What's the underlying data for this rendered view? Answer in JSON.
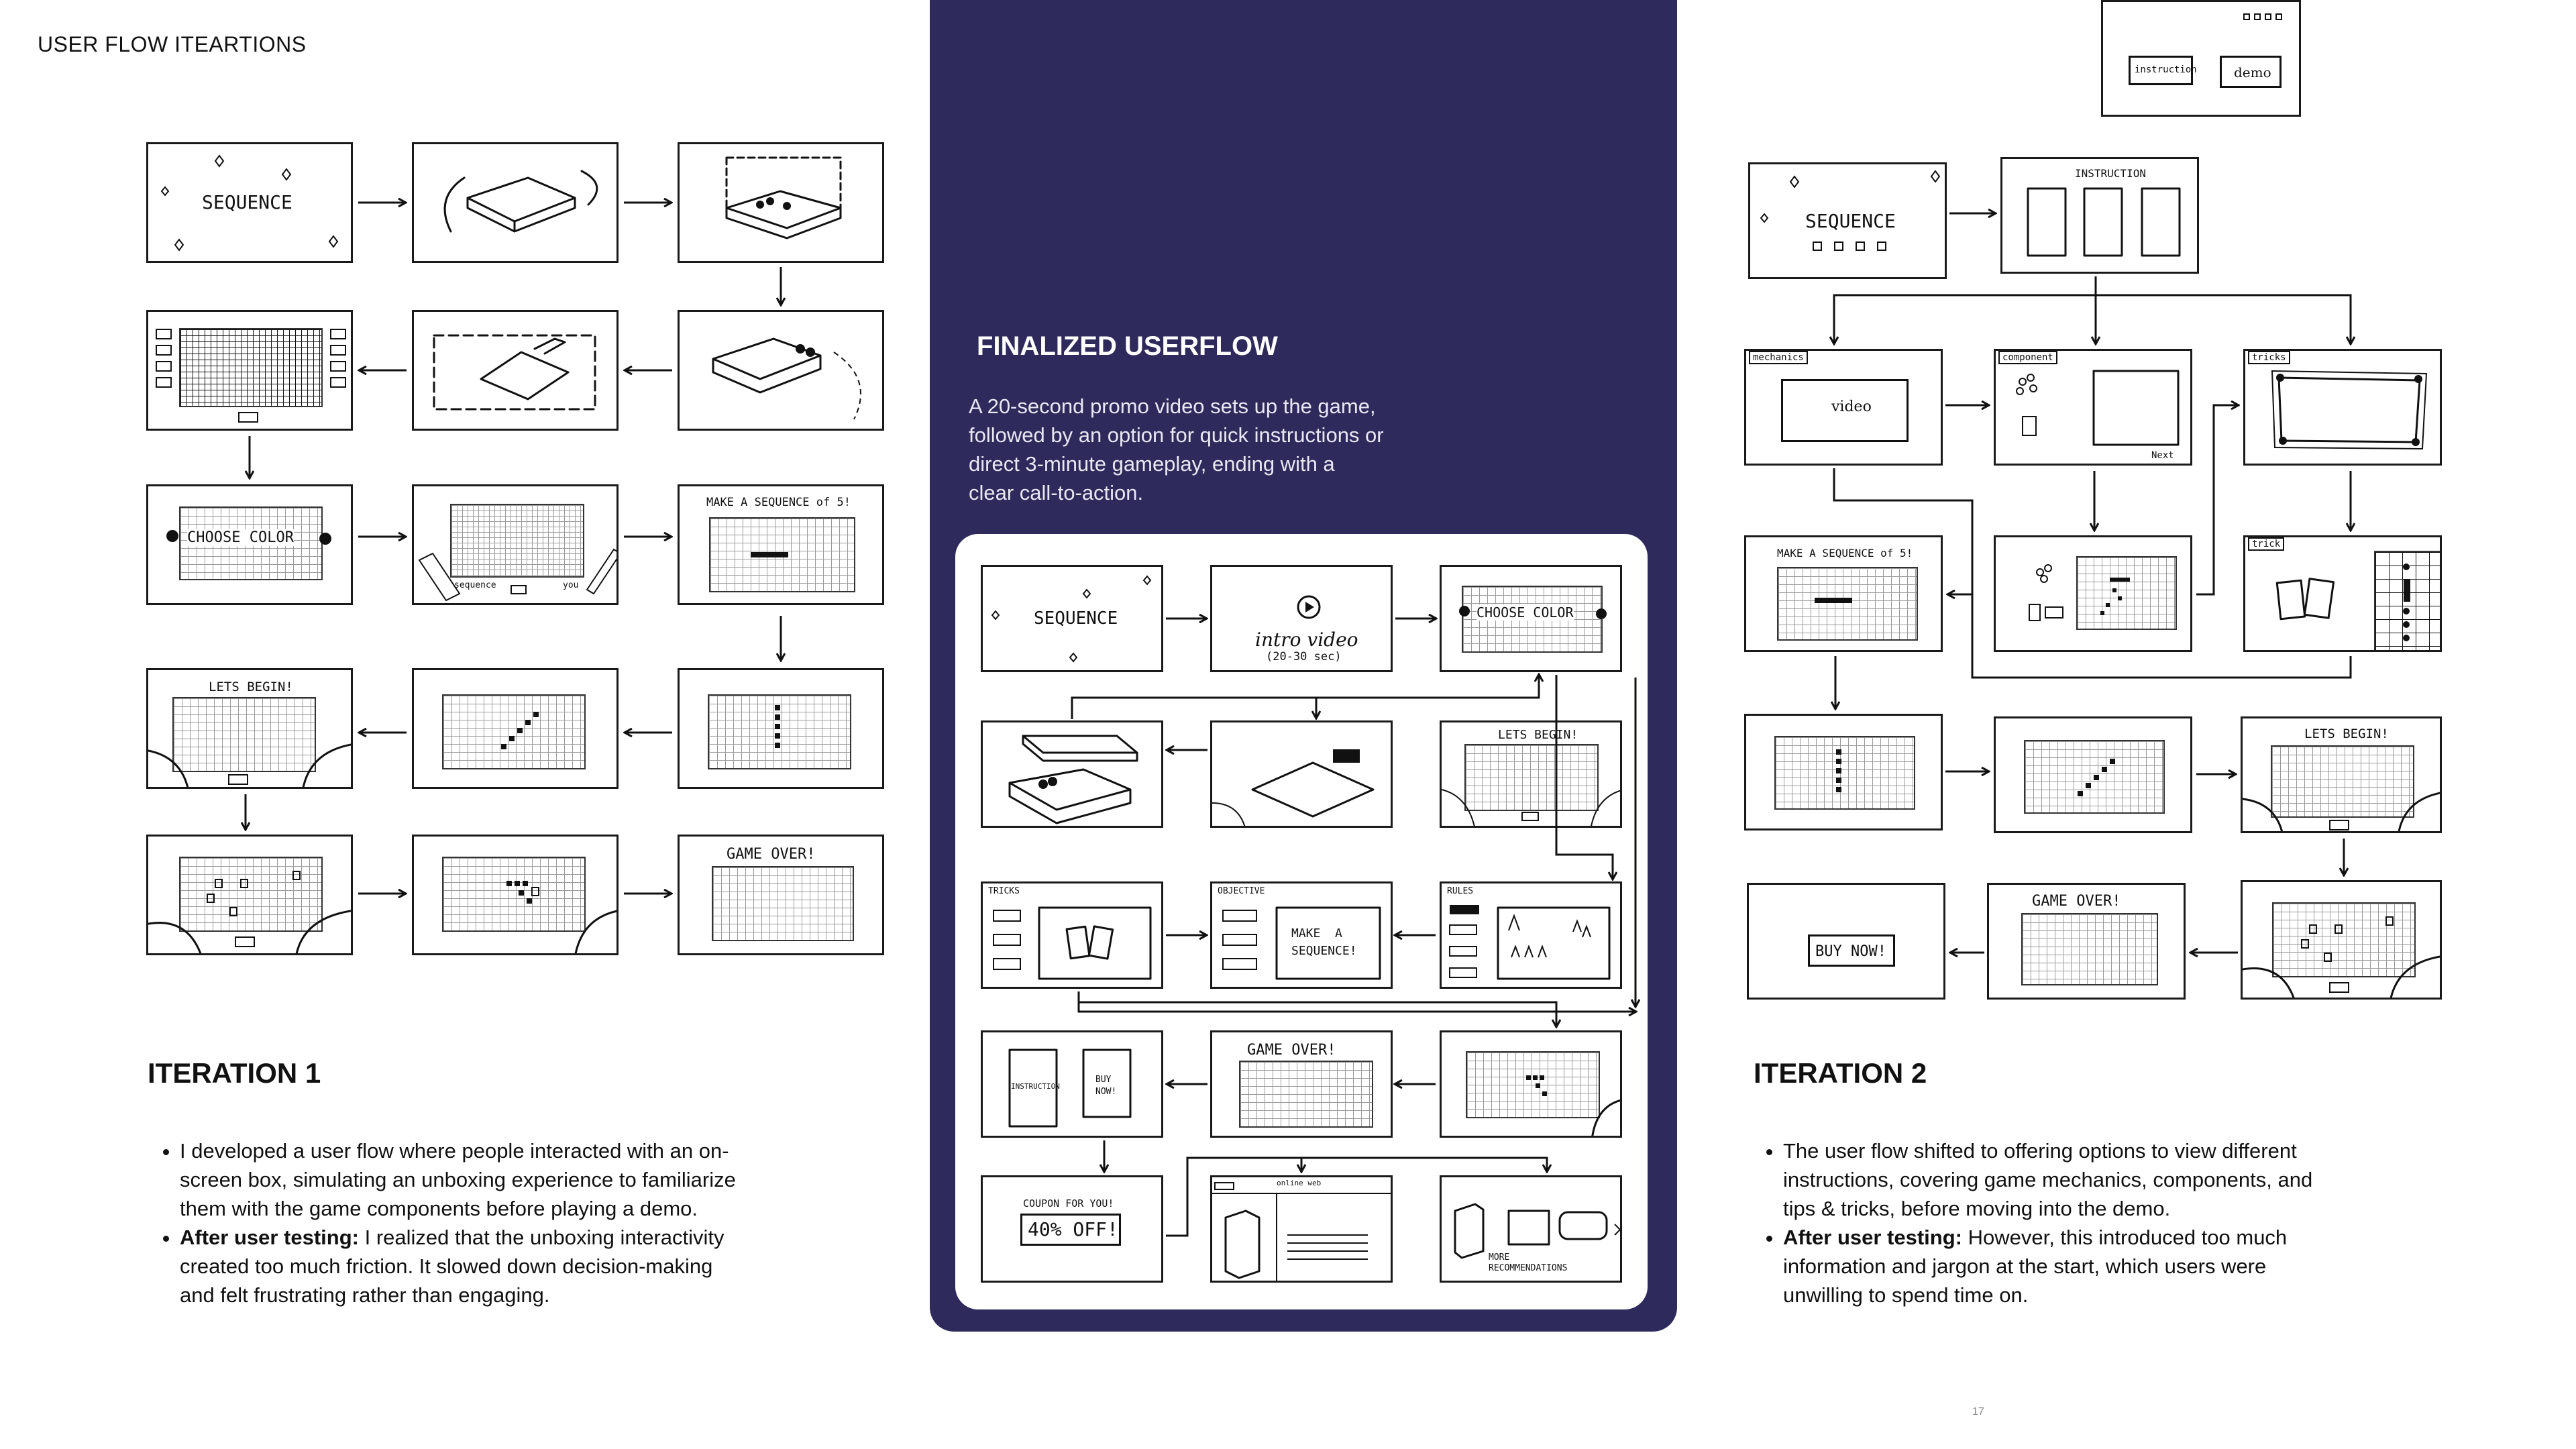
{
  "page": {
    "title": "USER FLOW ITEARTIONS",
    "page_number": "17"
  },
  "iteration1": {
    "heading": "ITERATION 1",
    "bullets": [
      {
        "bold": "",
        "text": "I developed a user flow where people interacted with an on-screen box, simulating an unboxing experience to familiarize them with the game components before playing a demo."
      },
      {
        "bold": "After user testing:",
        "text": " I realized that the unboxing interactivity created too much friction. It slowed down decision-making and felt frustrating rather than engaging."
      }
    ],
    "sketch_labels": {
      "sequence": "SEQUENCE",
      "choose_color": "CHOOSE  COLOR",
      "make_sequence": "MAKE  A  SEQUENCE of 5!",
      "lets_begin": "LETS  BEGIN!",
      "game_over": "GAME  OVER!",
      "sequence_small": "sequence",
      "you": "you"
    }
  },
  "finalized": {
    "heading": "FINALIZED USERFLOW",
    "description": " A 20-second promo video sets up the game, followed by an option for quick instructions or direct 3-minute gameplay, ending with a clear call-to-action.",
    "sketch_labels": {
      "sequence": "SEQUENCE",
      "intro_video": "intro video",
      "intro_duration": "(20-30 sec)",
      "choose_color": "CHOOSE  COLOR",
      "lets_begin": "LETS  BEGIN!",
      "tricks": "TRICKS",
      "objective": "OBJECTIVE",
      "rules": "RULES",
      "make_sequence": "MAKE  A\nSEQUENCE!",
      "game_over": "GAME  OVER!",
      "instruction": "INSTRUCTION",
      "buy_now": "BUY\nNOW!",
      "coupon_title": "COUPON  FOR  YOU!",
      "coupon_value": "40% OFF!",
      "online_web": "online web",
      "more_recs": "MORE\nRECOMMENDATIONS"
    }
  },
  "iteration2": {
    "heading": "ITERATION 2",
    "bullets": [
      {
        "bold": "",
        "text": "The user flow shifted to offering options to view different instructions, covering game mechanics, components, and tips & tricks,  before moving into the demo."
      },
      {
        "bold": "After user testing:",
        "text": " However, this introduced too much information and jargon at the start, which users were unwilling to spend time on."
      }
    ],
    "sketch_labels": {
      "instruction_btn": "instruction",
      "demo_btn": "demo",
      "sequence": "SEQUENCE",
      "instruction": "INSTRUCTION",
      "mechanics": "mechanics",
      "component": "component",
      "tricks": "tricks",
      "video": "video",
      "next": "Next",
      "make_sequence": "MAKE  A  SEQUENCE of 5!",
      "trick": "trick",
      "lets_begin": "LETS  BEGIN!",
      "game_over": "GAME  OVER!",
      "buy_now": "BUY  NOW!"
    }
  },
  "colors": {
    "panel": "#2e2a5c",
    "ink": "#111111"
  }
}
